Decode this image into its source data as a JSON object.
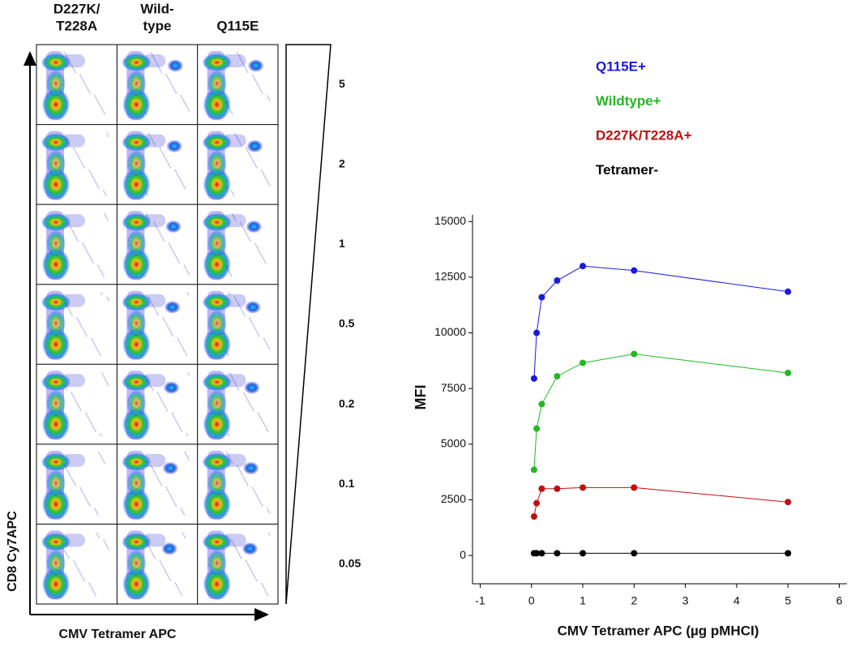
{
  "flow_panel": {
    "column_headers": [
      [
        "D227K/",
        "T228A"
      ],
      [
        "Wild-",
        "type"
      ],
      [
        "Q115E"
      ]
    ],
    "row_labels": [
      "5",
      "2",
      "1",
      "0.5",
      "0.2",
      "0.1",
      "0.05"
    ],
    "y_axis_label": "CD8 Cy7APC",
    "x_axis_label": "CMV Tetramer APC"
  },
  "chart_data": {
    "type": "line",
    "x_label": "CMV Tetramer APC (µg pMHCI)",
    "y_label": "MFI",
    "x": [
      0.05,
      0.1,
      0.2,
      0.5,
      1,
      2,
      5
    ],
    "series": [
      {
        "name": "Q115E+",
        "color": "#1a1ae0",
        "values": [
          7950,
          10000,
          11600,
          12350,
          13000,
          12800,
          11850
        ]
      },
      {
        "name": "Wildtype+",
        "color": "#22b822",
        "values": [
          3850,
          5700,
          6800,
          8050,
          8650,
          9050,
          8200
        ]
      },
      {
        "name": "D227K/T228A+",
        "color": "#c01010",
        "values": [
          1750,
          2350,
          3000,
          3000,
          3050,
          3050,
          2400
        ]
      },
      {
        "name": "Tetramer-",
        "color": "#000000",
        "values": [
          100,
          100,
          100,
          100,
          100,
          100,
          100
        ]
      }
    ],
    "xlim": [
      -1.15,
      6.15
    ],
    "xticks": [
      -1,
      0,
      1,
      2,
      3,
      4,
      5,
      6
    ],
    "ylim": [
      -1270,
      15300
    ],
    "yticks": [
      0,
      2500,
      5000,
      7500,
      10000,
      12500,
      15000
    ],
    "grid": false
  }
}
